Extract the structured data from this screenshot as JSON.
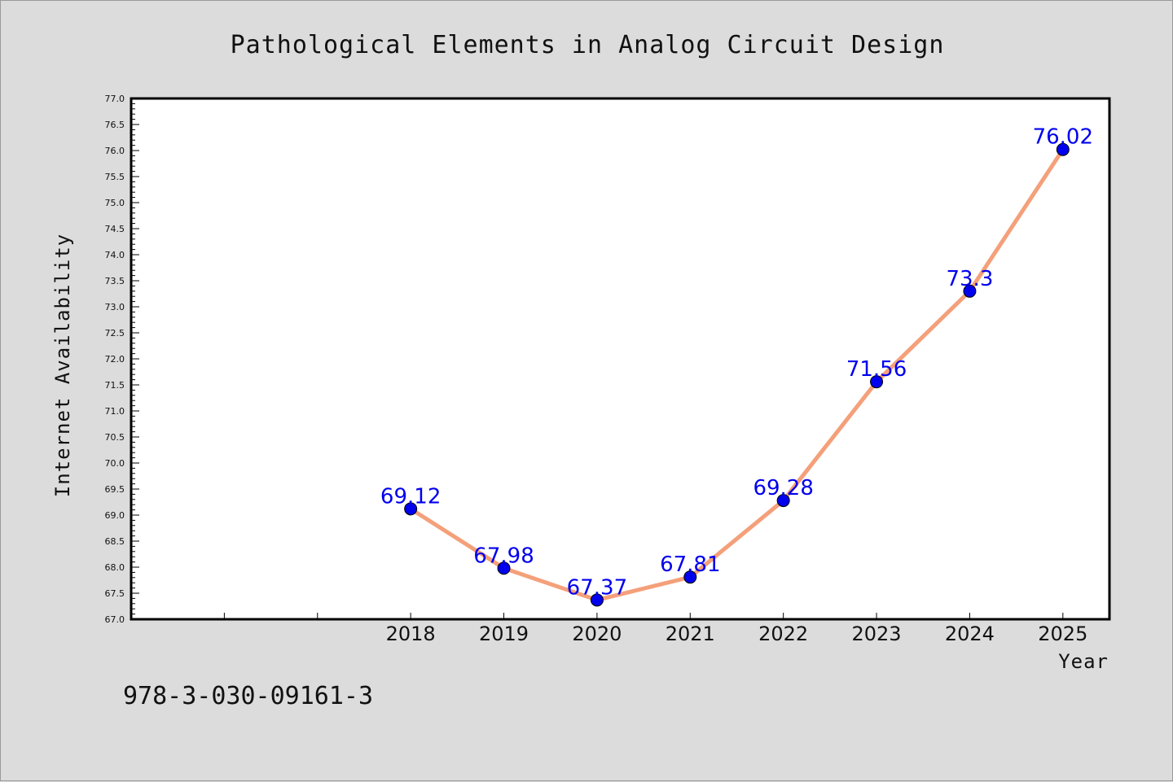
{
  "chart_data": {
    "type": "line",
    "title": "Pathological Elements in Analog Circuit Design",
    "xlabel": "Year",
    "ylabel": "Internet Availability",
    "x": [
      2018,
      2019,
      2020,
      2021,
      2022,
      2023,
      2024,
      2025
    ],
    "x_tick_labels": [
      "2018",
      "2019",
      "2020",
      "2021",
      "2022",
      "2023",
      "2024",
      "2025"
    ],
    "xlim": [
      2015,
      2025.5
    ],
    "ylim": [
      67.0,
      77.0
    ],
    "y_tick_labels": [
      "67.0",
      "67.5",
      "68.0",
      "68.5",
      "69.0",
      "69.5",
      "70.0",
      "70.5",
      "71.0",
      "71.5",
      "72.0",
      "72.5",
      "73.0",
      "73.5",
      "74.0",
      "74.5",
      "75.0",
      "75.5",
      "76.0",
      "76.5",
      "77.0"
    ],
    "series": [
      {
        "values": [
          69.12,
          67.98,
          67.37,
          67.81,
          69.28,
          71.56,
          73.3,
          76.02
        ],
        "data_labels": [
          "69.12",
          "67.98",
          "67.37",
          "67.81",
          "69.28",
          "71.56",
          "73.3",
          "76.02"
        ],
        "line_color": "#f4a07a",
        "marker_color": "#0000ee"
      }
    ],
    "grid": false,
    "legend": "none"
  },
  "footer": {
    "isbn": "978-3-030-09161-3"
  }
}
